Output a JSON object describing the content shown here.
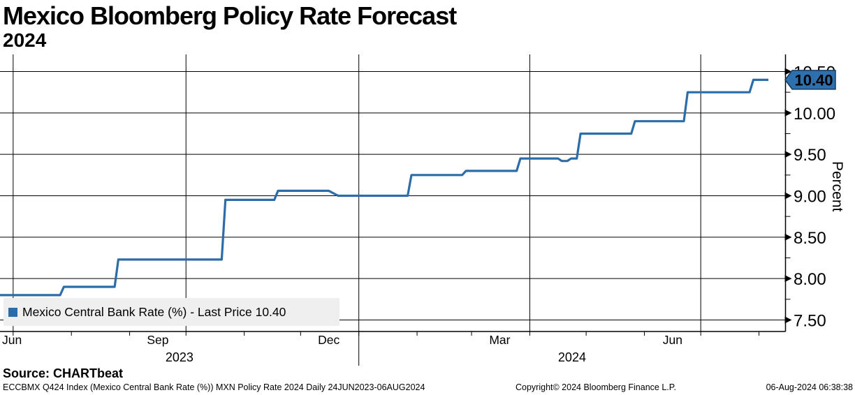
{
  "header": {
    "title": "Mexico Bloomberg Policy Rate Forecast",
    "subtitle": "2024"
  },
  "chart": {
    "legend": "Mexico Central Bank Rate (%) - Last Price 10.40",
    "ylabel": "Percent",
    "last_price_badge": "10.40",
    "colors": {
      "line": "#2b6ca9",
      "badge_fill": "#2e6fad",
      "badge_border": "#1a3a5a",
      "legend_bg": "#efefef",
      "grid": "#000000"
    }
  },
  "chart_data": {
    "type": "line",
    "title": "Mexico Bloomberg Policy Rate Forecast 2024",
    "xlabel": "",
    "ylabel": "Percent",
    "grid": true,
    "legend_position": "bottom-left",
    "x_start": "2023-06-24",
    "x_end_data": "2024-08-06",
    "x_axis_end": "2024-08-15",
    "ylim": [
      7.36,
      10.71
    ],
    "y_major_ticks": [
      7.5,
      8.0,
      8.5,
      9.0,
      9.5,
      10.0,
      10.5
    ],
    "y_minor_ticks": [
      7.75,
      8.25,
      8.75,
      9.25,
      9.75,
      10.25
    ],
    "x_month_ticks": [
      "2023-07-01",
      "2023-08-01",
      "2023-09-01",
      "2023-10-01",
      "2023-11-01",
      "2023-12-01",
      "2024-01-01",
      "2024-02-01",
      "2024-03-01",
      "2024-04-01",
      "2024-05-01",
      "2024-06-01",
      "2024-07-01",
      "2024-08-01"
    ],
    "x_gridlines": [
      "2023-07-01",
      "2023-10-01",
      "2024-01-01",
      "2024-04-01",
      "2024-07-01"
    ],
    "x_month_labels": [
      {
        "label": "Jun",
        "mid": "2023-06-28"
      },
      {
        "label": "Sep",
        "mid": "2023-09-16"
      },
      {
        "label": "Dec",
        "mid": "2023-12-16"
      },
      {
        "label": "Mar",
        "mid": "2024-03-16"
      },
      {
        "label": "Jun",
        "mid": "2024-06-16"
      }
    ],
    "x_year_labels": [
      {
        "label": "2023",
        "from": "2023-06-24",
        "to": "2024-01-01"
      },
      {
        "label": "2024",
        "from": "2024-01-01",
        "to": "2024-08-15"
      }
    ],
    "series": [
      {
        "name": "Mexico Central Bank Rate (%)",
        "last_price": 10.4,
        "points": [
          [
            "2023-06-24",
            7.8
          ],
          [
            "2023-07-26",
            7.8
          ],
          [
            "2023-07-28",
            7.9
          ],
          [
            "2023-08-24",
            7.9
          ],
          [
            "2023-08-26",
            8.23
          ],
          [
            "2023-10-20",
            8.23
          ],
          [
            "2023-10-22",
            8.95
          ],
          [
            "2023-11-17",
            8.95
          ],
          [
            "2023-11-19",
            9.06
          ],
          [
            "2023-12-16",
            9.06
          ],
          [
            "2023-12-21",
            9.0
          ],
          [
            "2024-01-27",
            9.0
          ],
          [
            "2024-01-29",
            9.25
          ],
          [
            "2024-02-25",
            9.25
          ],
          [
            "2024-02-27",
            9.3
          ],
          [
            "2024-03-25",
            9.3
          ],
          [
            "2024-03-27",
            9.45
          ],
          [
            "2024-04-16",
            9.45
          ],
          [
            "2024-04-18",
            9.42
          ],
          [
            "2024-04-21",
            9.42
          ],
          [
            "2024-04-23",
            9.45
          ],
          [
            "2024-04-26",
            9.45
          ],
          [
            "2024-04-28",
            9.75
          ],
          [
            "2024-05-25",
            9.75
          ],
          [
            "2024-05-27",
            9.9
          ],
          [
            "2024-06-22",
            9.9
          ],
          [
            "2024-06-24",
            10.25
          ],
          [
            "2024-07-27",
            10.25
          ],
          [
            "2024-07-29",
            10.4
          ],
          [
            "2024-08-06",
            10.4
          ]
        ]
      }
    ]
  },
  "footer": {
    "source": "Source: CHARTbeat",
    "meta": "ECCBMX Q424 Index (Mexico Central Bank Rate (%)) MXN Policy Rate 2024  Daily 24JUN2023-06AUG2024",
    "copyright": "Copyright© 2024 Bloomberg Finance L.P.",
    "timestamp": "06-Aug-2024 06:38:38"
  }
}
